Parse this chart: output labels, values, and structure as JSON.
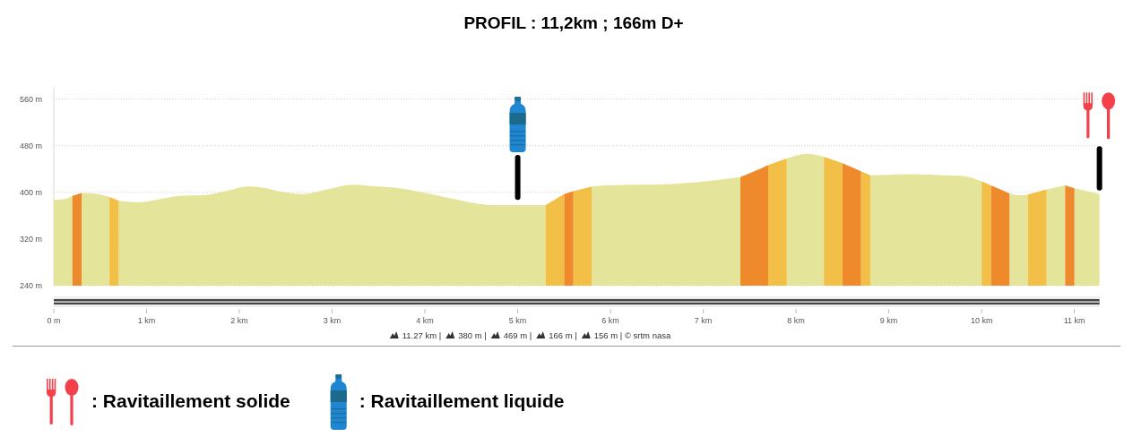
{
  "chart_data": {
    "type": "area",
    "title": "PROFIL : 11,2km ; 166m D+",
    "xlim": [
      0,
      11.27
    ],
    "xticks": [
      {
        "value": 0,
        "label": "0 m"
      },
      {
        "value": 1,
        "label": "1 km"
      },
      {
        "value": 2,
        "label": "2 km"
      },
      {
        "value": 3,
        "label": "3 km"
      },
      {
        "value": 4,
        "label": "4 km"
      },
      {
        "value": 5,
        "label": "5 km"
      },
      {
        "value": 6,
        "label": "6 km"
      },
      {
        "value": 7,
        "label": "7 km"
      },
      {
        "value": 8,
        "label": "8 km"
      },
      {
        "value": 9,
        "label": "9 km"
      },
      {
        "value": 10,
        "label": "10 km"
      },
      {
        "value": 11,
        "label": "11 km"
      }
    ],
    "ylim": [
      240,
      580
    ],
    "yticks": [
      {
        "value": 240,
        "label": "240 m"
      },
      {
        "value": 320,
        "label": "320 m"
      },
      {
        "value": 400,
        "label": "400 m"
      },
      {
        "value": 480,
        "label": "480 m"
      },
      {
        "value": 560,
        "label": "560 m"
      }
    ],
    "grid": "y",
    "series": [
      {
        "color": "#e4e59b",
        "x": [
          0,
          0.1,
          0.2,
          0.25,
          0.3,
          0.4,
          0.5,
          0.6,
          0.65,
          0.7,
          0.8,
          0.93,
          1.1,
          1.35,
          1.61,
          1.85,
          2.09,
          2.25,
          2.45,
          2.67,
          2.95,
          3.22,
          3.48,
          3.67,
          4.03,
          4.3,
          4.51,
          4.73,
          5.0,
          5.3,
          5.55,
          5.8,
          5.96,
          6.3,
          6.6,
          7.02,
          7.4,
          7.65,
          7.9,
          8.0,
          8.12,
          8.3,
          8.55,
          8.8,
          9.0,
          9.28,
          9.6,
          9.79,
          10.0,
          10.15,
          10.3,
          10.4,
          10.5,
          10.6,
          10.7,
          10.9,
          10.95,
          11.0,
          11.27
        ],
        "values": [
          387,
          388,
          394,
          null,
          399,
          398,
          396,
          392,
          null,
          386,
          384,
          383,
          387,
          394,
          395,
          402,
          410,
          408,
          401,
          397,
          405,
          413,
          410,
          408,
          398,
          389,
          382,
          378,
          378,
          378,
          null,
          410,
          412,
          413,
          414,
          419,
          426,
          null,
          458,
          463,
          466,
          461,
          null,
          429,
          430,
          431,
          429,
          428,
          419,
          null,
          398,
          395,
          396,
          null,
          405,
          412,
          null,
          407,
          397
        ]
      },
      {
        "color": "#f2c046",
        "x": [
          0.6,
          0.7,
          3,
          5.3,
          5.5,
          5.55,
          5.6,
          5.8,
          6.75,
          7.7,
          7.9,
          8.1,
          8.3,
          8.5,
          8.6,
          8.7,
          8.8,
          9.4,
          10.0,
          10.1,
          10.3,
          10.5,
          10.7
        ],
        "values": [
          392,
          386,
          null,
          378,
          397,
          null,
          402,
          410,
          null,
          447,
          458,
          null,
          461,
          450,
          null,
          436,
          429,
          null,
          419,
          412,
          null,
          396,
          405
        ]
      },
      {
        "color": "#ee8a2b",
        "x": [
          0.2,
          0.3,
          3,
          5.5,
          5.6,
          6.5,
          7.4,
          7.55,
          7.7,
          8.1,
          8.5,
          8.6,
          8.7,
          9.4,
          10.1,
          10.2,
          10.3,
          10.6,
          10.9,
          11.0
        ],
        "values": [
          394,
          399,
          null,
          397,
          402,
          null,
          426,
          436,
          447,
          null,
          450,
          443,
          436,
          null,
          412,
          405,
          398,
          null,
          412,
          407
        ]
      },
      {
        "type": "bar",
        "color": "#000000",
        "x": [
          5,
          11.27
        ],
        "base": [
          387,
          403
        ],
        "values": [
          77,
          76
        ]
      }
    ],
    "annotations": [
      "11.27 km |",
      "380 m |",
      "469 m |",
      "166 m |",
      "156 m | © srtm nasa",
      ": Ravitaillement solide",
      ": Ravitaillement liquide"
    ]
  }
}
